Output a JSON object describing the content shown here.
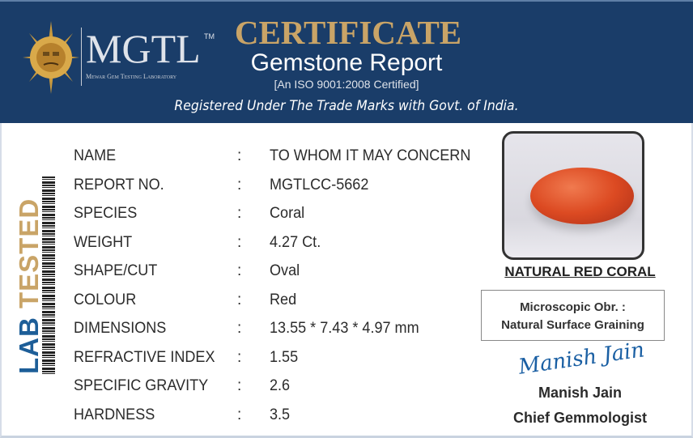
{
  "header": {
    "logo_text": "MGTL",
    "trademark": "TM",
    "lab_name": "Mewar Gem Testing Laboratory",
    "title": "CERTIFICATE",
    "subtitle": "Gemstone Report",
    "iso": "[An ISO 9001:2008 Certified]",
    "registered": "Registered Under The Trade Marks with Govt. of India."
  },
  "side": {
    "lab": "LAB",
    "tested": "TESTED"
  },
  "details": [
    {
      "label": "NAME",
      "value": "TO WHOM IT MAY CONCERN"
    },
    {
      "label": "REPORT NO.",
      "value": "MGTLCC-5662"
    },
    {
      "label": "SPECIES",
      "value": "Coral"
    },
    {
      "label": "WEIGHT",
      "value": "4.27 Ct."
    },
    {
      "label": "SHAPE/CUT",
      "value": "Oval"
    },
    {
      "label": "COLOUR",
      "value": "Red"
    },
    {
      "label": "DIMENSIONS",
      "value": "13.55 * 7.43 * 4.97 mm"
    },
    {
      "label": "REFRACTIVE INDEX",
      "value": "1.55"
    },
    {
      "label": "SPECIFIC GRAVITY",
      "value": "2.6"
    },
    {
      "label": "HARDNESS",
      "value": "3.5"
    }
  ],
  "colon": ":",
  "gem": {
    "name": "NATURAL RED CORAL",
    "obs_label": "Microscopic Obr. :",
    "obs_value": "Natural Surface Graining"
  },
  "signatory": {
    "signature": "Manish Jain",
    "name": "Manish Jain",
    "title": "Chief Gemmologist"
  },
  "colors": {
    "header": "#1a3d69",
    "gold": "#c9a467",
    "blue": "#1d5e98"
  }
}
